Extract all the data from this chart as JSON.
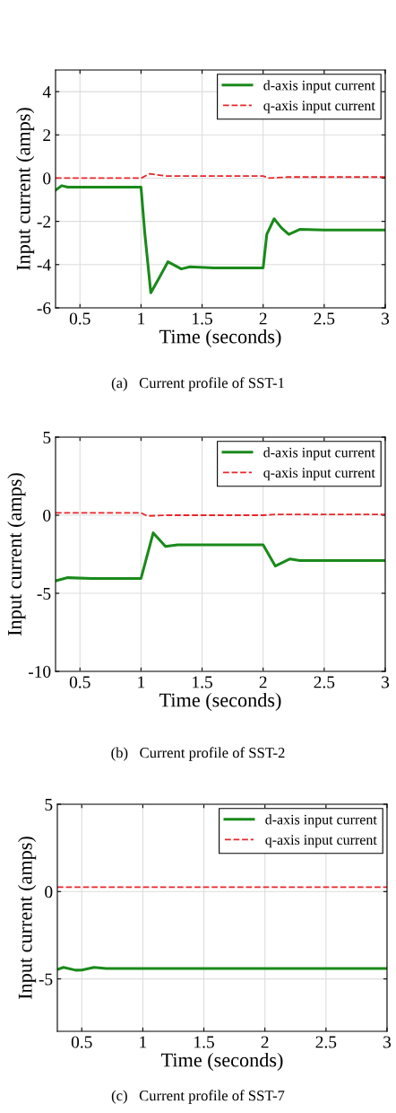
{
  "chart_data": [
    {
      "type": "line",
      "xlabel": "Time (seconds)",
      "ylabel": "Input current (amps)",
      "xlim": [
        0.3,
        3
      ],
      "xticks": [
        0.5,
        1,
        1.5,
        2,
        2.5,
        3
      ],
      "ylim": [
        -6,
        5
      ],
      "yticks": [
        -6,
        -4,
        -2,
        0,
        2,
        4
      ],
      "grid": true,
      "legend": "top right",
      "annotations": [
        "(a)   Current profile of SST-1"
      ],
      "series": [
        {
          "name": "d-axis input current",
          "color": "#1a8a1a",
          "line_style": "solid",
          "x": [
            0.3,
            0.35,
            0.4,
            0.6,
            1.0,
            1.03,
            1.08,
            1.15,
            1.22,
            1.33,
            1.4,
            1.6,
            2.0,
            2.03,
            2.09,
            2.15,
            2.21,
            2.3,
            2.5,
            3.0
          ],
          "values": [
            -0.56,
            -0.35,
            -0.42,
            -0.42,
            -0.42,
            -2.5,
            -5.3,
            -4.6,
            -3.87,
            -4.2,
            -4.1,
            -4.15,
            -4.15,
            -2.6,
            -1.88,
            -2.3,
            -2.6,
            -2.37,
            -2.4,
            -2.4
          ]
        },
        {
          "name": "q-axis input current",
          "color": "#e8262a",
          "line_style": "dashed",
          "x": [
            0.3,
            1.0,
            1.07,
            1.2,
            2.0,
            2.05,
            2.2,
            3.0
          ],
          "values": [
            0.0,
            0.0,
            0.2,
            0.1,
            0.1,
            0.0,
            0.05,
            0.05
          ]
        }
      ]
    },
    {
      "type": "line",
      "xlabel": "Time (seconds)",
      "ylabel": "Input current (amps)",
      "xlim": [
        0.3,
        3
      ],
      "xticks": [
        0.5,
        1,
        1.5,
        2,
        2.5,
        3
      ],
      "ylim": [
        -10,
        5
      ],
      "yticks": [
        -10,
        -5,
        0,
        5
      ],
      "grid": true,
      "legend": "top right",
      "annotations": [
        "(b)   Current profile of SST-2"
      ],
      "series": [
        {
          "name": "d-axis input current",
          "color": "#1a8a1a",
          "line_style": "solid",
          "x": [
            0.3,
            0.4,
            0.6,
            1.0,
            1.1,
            1.2,
            1.3,
            1.6,
            2.0,
            2.1,
            2.22,
            2.3,
            2.6,
            3.0
          ],
          "values": [
            -4.2,
            -4.0,
            -4.05,
            -4.05,
            -1.13,
            -2.0,
            -1.9,
            -1.9,
            -1.9,
            -3.26,
            -2.8,
            -2.9,
            -2.9,
            -2.9
          ]
        },
        {
          "name": "q-axis input current",
          "color": "#e8262a",
          "line_style": "dashed",
          "x": [
            0.3,
            1.0,
            1.05,
            1.2,
            2.0,
            2.1,
            3.0
          ],
          "values": [
            0.15,
            0.15,
            -0.05,
            0.0,
            0.0,
            0.05,
            0.05
          ]
        }
      ]
    },
    {
      "type": "line",
      "xlabel": "Time (seconds)",
      "ylabel": "Input current (amps)",
      "xlim": [
        0.3,
        3
      ],
      "xticks": [
        0.5,
        1,
        1.5,
        2,
        2.5,
        3
      ],
      "ylim": [
        -8,
        5
      ],
      "yticks": [
        -5,
        0,
        5
      ],
      "grid": true,
      "legend": "top right",
      "annotations": [
        "(c)   Current profile of SST-7"
      ],
      "series": [
        {
          "name": "d-axis input current",
          "color": "#1a8a1a",
          "line_style": "solid",
          "x": [
            0.3,
            0.35,
            0.45,
            0.5,
            0.6,
            0.7,
            1.0,
            2.0,
            3.0
          ],
          "values": [
            -4.46,
            -4.34,
            -4.5,
            -4.49,
            -4.34,
            -4.4,
            -4.4,
            -4.4,
            -4.4
          ]
        },
        {
          "name": "q-axis input current",
          "color": "#e8262a",
          "line_style": "dashed",
          "x": [
            0.3,
            1.0,
            2.0,
            3.0
          ],
          "values": [
            0.25,
            0.25,
            0.25,
            0.25
          ]
        }
      ]
    }
  ]
}
